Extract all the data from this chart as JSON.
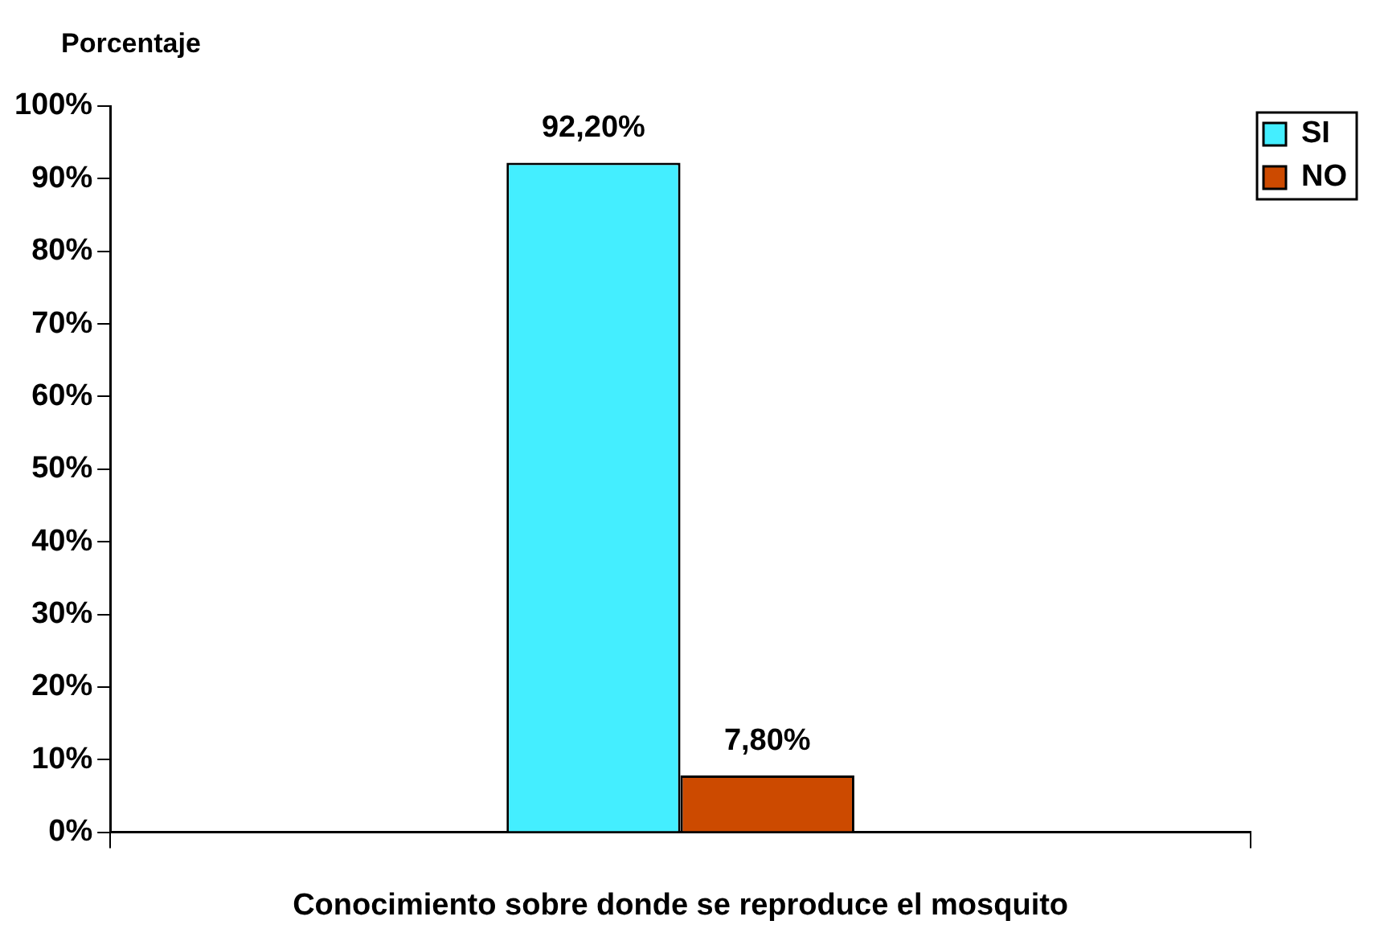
{
  "chart_data": {
    "type": "bar",
    "ylabel": "Porcentaje",
    "xlabel": "Conocimiento sobre donde se reproduce el mosquito",
    "categories": [
      null
    ],
    "series": [
      {
        "name": "SI",
        "color": "#44eeff",
        "values": [
          92.2
        ],
        "value_labels": [
          "92,20%"
        ]
      },
      {
        "name": "NO",
        "color": "#cc4a00",
        "values": [
          7.8
        ],
        "value_labels": [
          "7,80%"
        ]
      }
    ],
    "ylim": [
      0,
      100
    ],
    "yticks": [
      {
        "value": 0,
        "label": "0%"
      },
      {
        "value": 10,
        "label": "10%"
      },
      {
        "value": 20,
        "label": "20%"
      },
      {
        "value": 30,
        "label": "30%"
      },
      {
        "value": 40,
        "label": "40%"
      },
      {
        "value": 50,
        "label": "50%"
      },
      {
        "value": 60,
        "label": "60%"
      },
      {
        "value": 70,
        "label": "70%"
      },
      {
        "value": 80,
        "label": "80%"
      },
      {
        "value": 90,
        "label": "90%"
      },
      {
        "value": 100,
        "label": "100%"
      }
    ],
    "grid": false,
    "legend": "top right"
  }
}
